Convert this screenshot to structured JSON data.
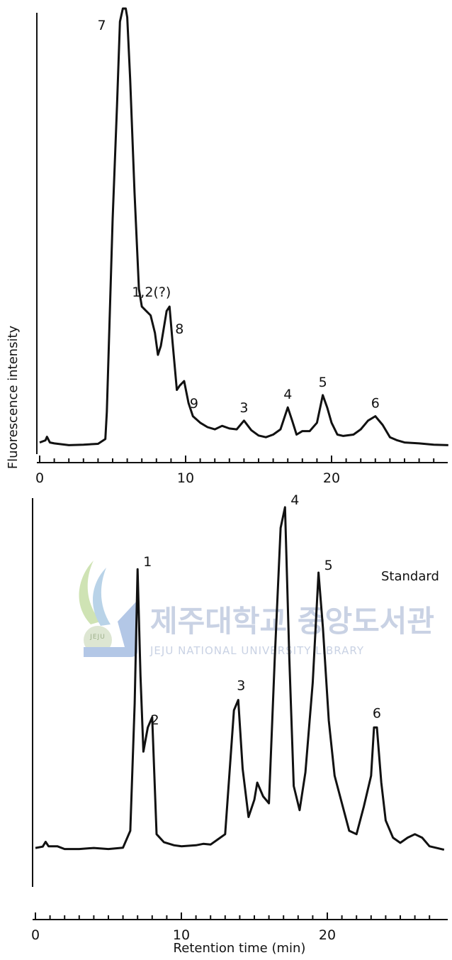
{
  "chart_data": [
    {
      "type": "line",
      "panel_label": "",
      "xlabel": "",
      "ylabel": "Fluorescence   intensity",
      "xlim": [
        0,
        28
      ],
      "x_ticks": [
        0,
        10,
        20
      ],
      "x_minor_ticks": [
        1,
        2,
        3,
        4,
        5,
        6,
        7,
        8,
        9,
        11,
        12,
        13,
        14,
        15,
        16,
        17,
        18,
        19,
        21,
        22,
        23,
        24,
        25,
        26,
        27
      ],
      "grid": false,
      "series": [
        {
          "x": [
            0,
            0.4,
            0.5,
            0.7,
            1,
            2,
            3,
            4,
            4.5,
            4.6,
            4.8,
            5.0,
            5.3,
            5.5,
            5.7,
            5.9,
            6.0,
            6.2,
            6.5,
            6.8,
            7.0,
            7.3,
            7.6,
            7.9,
            8.1,
            8.3,
            8.7,
            8.9,
            9.1,
            9.4,
            9.6,
            9.9,
            10.2,
            10.5,
            11,
            11.5,
            12,
            12.5,
            13,
            13.5,
            14,
            14.5,
            15,
            15.5,
            16,
            16.5,
            17,
            17.3,
            17.6,
            18,
            18.5,
            19,
            19.4,
            19.7,
            20.0,
            20.4,
            20.8,
            21.5,
            22,
            22.5,
            23,
            23.5,
            24,
            24.5,
            25,
            26,
            27,
            28
          ],
          "y": [
            1.0,
            1.5,
            2.3,
            1.0,
            0.8,
            0.4,
            0.5,
            0.7,
            1.8,
            8,
            30,
            52,
            78,
            97,
            100,
            100,
            98,
            84,
            58,
            36,
            32,
            31,
            30,
            26,
            21,
            23,
            31,
            32,
            24,
            13,
            14,
            15,
            10,
            7,
            5.5,
            4.5,
            4,
            4.8,
            4.2,
            4.0,
            6.0,
            3.8,
            2.6,
            2.2,
            2.8,
            4.0,
            9.0,
            6.0,
            2.8,
            3.6,
            3.6,
            5.5,
            11.8,
            9.0,
            5.5,
            2.8,
            2.5,
            2.8,
            4.0,
            6.0,
            7.0,
            5.0,
            2.2,
            1.5,
            1.0,
            0.8,
            0.5,
            0.4
          ]
        }
      ],
      "annotations": [
        {
          "text": "7",
          "x": 5.9,
          "y": 100
        },
        {
          "text": "1,2(?)",
          "x": 7.0,
          "y": 32
        },
        {
          "text": "8",
          "x": 8.9,
          "y": 32
        },
        {
          "text": "9",
          "x": 9.9,
          "y": 15
        },
        {
          "text": "3",
          "x": 14.0,
          "y": 6.0
        },
        {
          "text": "4",
          "x": 17.0,
          "y": 9.0
        },
        {
          "text": "5",
          "x": 19.4,
          "y": 11.8
        },
        {
          "text": "6",
          "x": 23.0,
          "y": 7.0
        }
      ]
    },
    {
      "type": "line",
      "panel_label": "Standard",
      "xlabel": "Retention      time (min)",
      "ylabel": "",
      "xlim": [
        0,
        28
      ],
      "x_ticks": [
        0,
        10,
        20
      ],
      "x_minor_ticks": [
        1,
        2,
        3,
        4,
        5,
        6,
        7,
        8,
        9,
        11,
        12,
        13,
        14,
        15,
        16,
        17,
        18,
        19,
        21,
        22,
        23,
        24,
        25,
        26,
        27
      ],
      "grid": false,
      "series": [
        {
          "x": [
            0,
            0.5,
            0.7,
            0.9,
            1.5,
            2,
            3,
            4,
            5,
            6,
            6.5,
            6.8,
            7.0,
            7.2,
            7.4,
            7.7,
            8.0,
            8.3,
            8.8,
            9.5,
            10,
            11,
            11.5,
            12,
            12.5,
            13,
            13.6,
            13.9,
            14.2,
            14.6,
            15,
            15.2,
            15.6,
            16,
            16.4,
            16.8,
            17.1,
            17.4,
            17.7,
            18.1,
            18.5,
            19,
            19.4,
            19.7,
            20.1,
            20.5,
            21,
            21.5,
            22,
            22.5,
            23,
            23.2,
            23.4,
            23.7,
            24,
            24.5,
            25,
            25.5,
            26,
            26.5,
            27,
            28
          ],
          "y": [
            0.0,
            0.4,
            1.8,
            0.5,
            0.5,
            -0.3,
            -0.3,
            0.0,
            -0.3,
            0.1,
            5,
            42,
            81,
            50,
            28,
            35,
            38,
            4,
            1.7,
            0.8,
            0.5,
            0.8,
            1.2,
            1.0,
            2.5,
            4.0,
            40,
            43,
            23,
            9,
            14,
            19,
            15,
            13,
            55,
            93,
            99,
            55,
            18,
            11,
            22,
            48,
            80,
            64,
            37,
            21,
            13,
            5.0,
            4.0,
            12.0,
            21.0,
            35.0,
            35.0,
            19.0,
            8.0,
            3.0,
            1.5,
            3.0,
            4.0,
            3.0,
            0.5,
            -0.5
          ]
        }
      ],
      "annotations": [
        {
          "text": "1",
          "x": 7.0,
          "y": 81
        },
        {
          "text": "2",
          "x": 7.7,
          "y": 38
        },
        {
          "text": "3",
          "x": 13.9,
          "y": 43
        },
        {
          "text": "4",
          "x": 17.1,
          "y": 99
        },
        {
          "text": "5",
          "x": 19.4,
          "y": 80
        },
        {
          "text": "6",
          "x": 23.2,
          "y": 35
        }
      ]
    }
  ],
  "watermark": {
    "korean": "제주대학교 중앙도서관",
    "english": "JEJU NATIONAL UNIVERSITY  LIBRARY",
    "emblem_text": "JEJU",
    "color": "#c9d2e4"
  },
  "colors": {
    "line": "#111111",
    "background": "#ffffff"
  }
}
